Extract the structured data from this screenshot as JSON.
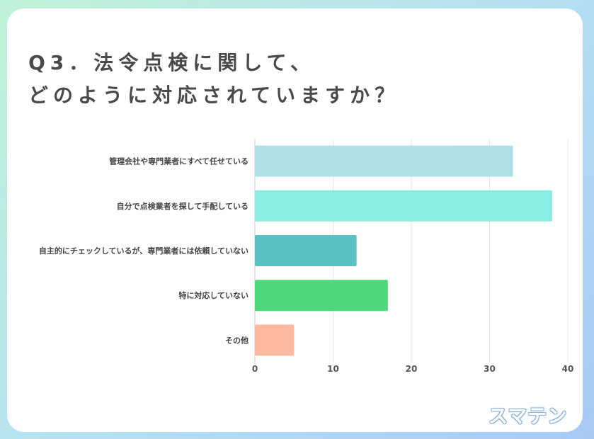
{
  "title": {
    "line1": "Q3．法令点検に関して、",
    "line2": "どのように対応されていますか？"
  },
  "chart_data": {
    "type": "bar",
    "orientation": "horizontal",
    "categories": [
      "管理会社や専門業者にすべて任せている",
      "自分で点検業者を探して手配している",
      "自主的にチェックしているが、専門業者には依頼していない",
      "特に対応していない",
      "その他"
    ],
    "values": [
      33,
      38,
      13,
      17,
      5
    ],
    "colors": [
      "#b2e0e8",
      "#8aede4",
      "#5cc1c4",
      "#4fd77c",
      "#fdb8a0"
    ],
    "xlim": [
      0,
      40
    ],
    "xticks": [
      0,
      10,
      20,
      30,
      40
    ],
    "grid": true
  },
  "logo": {
    "text": "スマテン"
  }
}
